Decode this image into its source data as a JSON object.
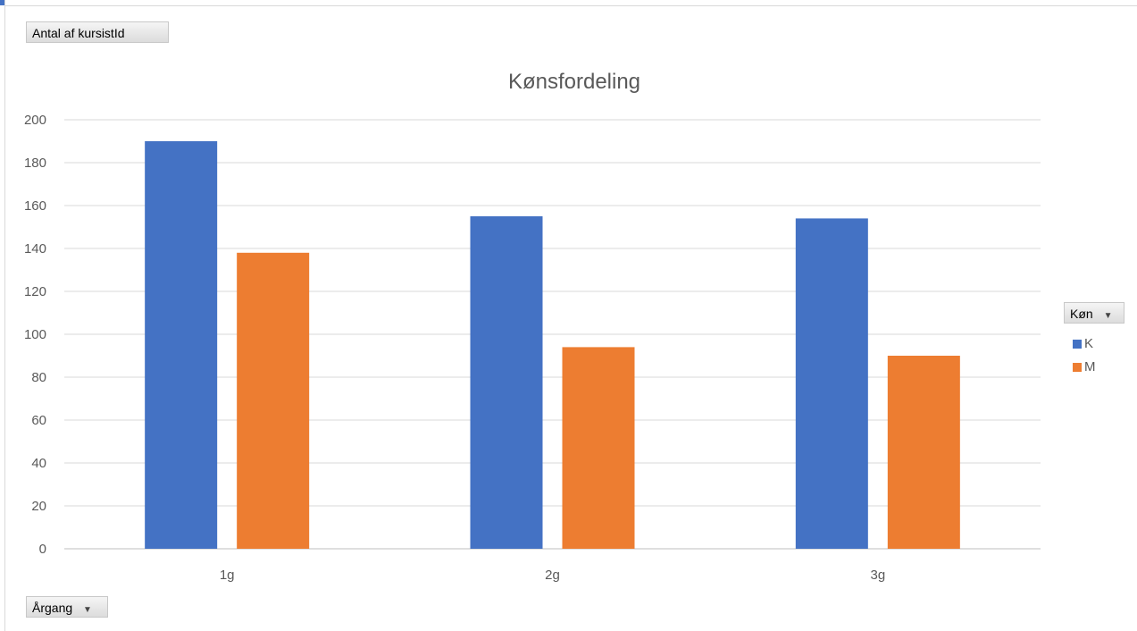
{
  "buttons": {
    "values_field": "Antal af kursistId",
    "axis_field": "Årgang",
    "legend_field": "Køn",
    "dropdown_glyph": "▼"
  },
  "chart_data": {
    "type": "bar",
    "title": "Kønsfordeling",
    "categories": [
      "1g",
      "2g",
      "3g"
    ],
    "series": [
      {
        "name": "K",
        "values": [
          190,
          155,
          154
        ],
        "color": "#4472c4"
      },
      {
        "name": "M",
        "values": [
          138,
          94,
          90
        ],
        "color": "#ed7d31"
      }
    ],
    "ylim": [
      0,
      200
    ],
    "yticks": [
      "0",
      "20",
      "40",
      "60",
      "80",
      "100",
      "120",
      "140",
      "160",
      "180",
      "200"
    ],
    "grid": true,
    "legend_position": "right"
  }
}
